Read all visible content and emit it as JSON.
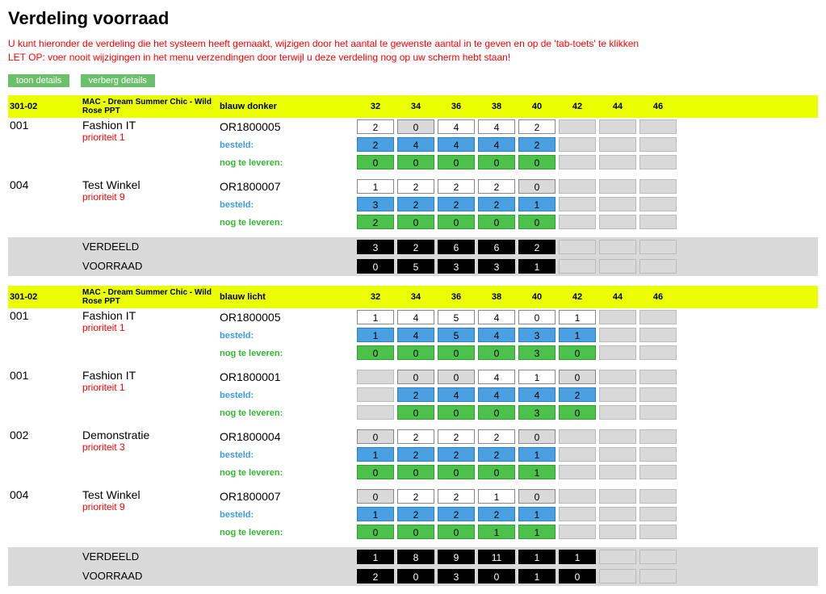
{
  "title": "Verdeling voorraad",
  "warning_line1": "U kunt hieronder de verdeling die het systeem heeft gemaakt, wijzigen door het aantal te gewenste aantal in te geven en op de 'tab-toets' te klikken",
  "warning_line2": "LET OP: voer nooit wijzigingen in het menu verzendingen door terwijl u deze verdeling nog op uw scherm hebt staan!",
  "buttons": {
    "show": "toon details",
    "hide": "verberg details"
  },
  "labels": {
    "besteld": "besteld:",
    "nogte": "nog te leveren:",
    "verdeeld": "VERDEELD",
    "voorraad": "VOORRAAD"
  },
  "sizes": [
    "32",
    "34",
    "36",
    "38",
    "40",
    "42",
    "44",
    "46"
  ],
  "groups": [
    {
      "code": "301-02",
      "desc": "MAC - Dream Summer Chic - Wild Rose PPT",
      "color": "blauw donker",
      "active_sizes": 5,
      "rows": [
        {
          "store_code": "001",
          "store_name": "Fashion IT",
          "priority": "prioriteit 1",
          "order": "OR1800005",
          "qty": [
            "2",
            "0",
            "4",
            "4",
            "2"
          ],
          "qty_ro": [
            false,
            true,
            false,
            false,
            false
          ],
          "besteld": [
            "2",
            "4",
            "4",
            "4",
            "2"
          ],
          "nogte": [
            "0",
            "0",
            "0",
            "0",
            "0"
          ]
        },
        {
          "store_code": "004",
          "store_name": "Test Winkel",
          "priority": "prioriteit 9",
          "order": "OR1800007",
          "qty": [
            "1",
            "2",
            "2",
            "2",
            "0"
          ],
          "qty_ro": [
            false,
            false,
            false,
            false,
            true
          ],
          "besteld": [
            "3",
            "2",
            "2",
            "2",
            "1"
          ],
          "nogte": [
            "2",
            "0",
            "0",
            "0",
            "0"
          ]
        }
      ],
      "verdeeld": [
        "3",
        "2",
        "6",
        "6",
        "2"
      ],
      "voorraad": [
        "0",
        "5",
        "3",
        "3",
        "1"
      ]
    },
    {
      "code": "301-02",
      "desc": "MAC - Dream Summer Chic - Wild Rose PPT",
      "color": "blauw licht",
      "active_sizes": 6,
      "rows": [
        {
          "store_code": "001",
          "store_name": "Fashion IT",
          "priority": "prioriteit 1",
          "order": "OR1800005",
          "qty": [
            "1",
            "4",
            "5",
            "4",
            "0",
            "1"
          ],
          "qty_ro": [
            false,
            false,
            false,
            false,
            false,
            false
          ],
          "besteld": [
            "1",
            "4",
            "5",
            "4",
            "3",
            "1"
          ],
          "nogte": [
            "0",
            "0",
            "0",
            "0",
            "3",
            "0"
          ]
        },
        {
          "store_code": "001",
          "store_name": "Fashion IT",
          "priority": "prioriteit 1",
          "order": "OR1800001",
          "qty": [
            "",
            "0",
            "0",
            "4",
            "1",
            "0"
          ],
          "qty_ro": [
            true,
            true,
            true,
            false,
            false,
            true
          ],
          "besteld": [
            "",
            "2",
            "4",
            "4",
            "4",
            "2"
          ],
          "nogte": [
            "",
            "0",
            "0",
            "0",
            "3",
            "0"
          ]
        },
        {
          "store_code": "002",
          "store_name": "Demonstratie",
          "priority": "prioriteit 3",
          "order": "OR1800004",
          "qty": [
            "0",
            "2",
            "2",
            "2",
            "0",
            ""
          ],
          "qty_ro": [
            true,
            false,
            false,
            false,
            true,
            true
          ],
          "besteld": [
            "1",
            "2",
            "2",
            "2",
            "1",
            ""
          ],
          "nogte": [
            "0",
            "0",
            "0",
            "0",
            "1",
            ""
          ]
        },
        {
          "store_code": "004",
          "store_name": "Test Winkel",
          "priority": "prioriteit 9",
          "order": "OR1800007",
          "qty": [
            "0",
            "2",
            "2",
            "1",
            "0",
            ""
          ],
          "qty_ro": [
            true,
            false,
            false,
            false,
            true,
            true
          ],
          "besteld": [
            "1",
            "2",
            "2",
            "2",
            "1",
            ""
          ],
          "nogte": [
            "0",
            "0",
            "0",
            "1",
            "1",
            ""
          ]
        }
      ],
      "verdeeld": [
        "1",
        "8",
        "9",
        "11",
        "1",
        "1"
      ],
      "voorraad": [
        "2",
        "0",
        "3",
        "0",
        "1",
        "0"
      ]
    }
  ]
}
